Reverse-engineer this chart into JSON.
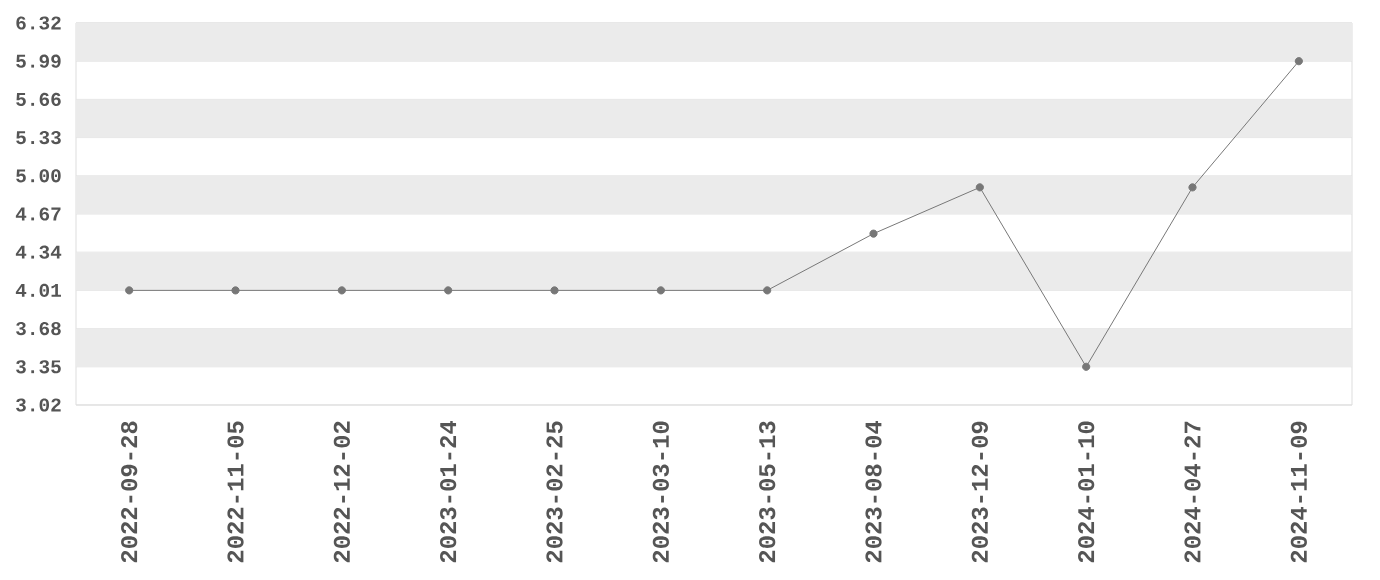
{
  "chart_data": {
    "type": "line",
    "categories": [
      "2022-09-28",
      "2022-11-05",
      "2022-12-02",
      "2023-01-24",
      "2023-02-25",
      "2023-03-10",
      "2023-05-13",
      "2023-08-04",
      "2023-12-09",
      "2024-01-10",
      "2024-04-27",
      "2024-11-09"
    ],
    "series": [
      {
        "color": "#777777",
        "values": [
          4.01,
          4.01,
          4.01,
          4.01,
          4.01,
          4.01,
          4.01,
          4.5,
          4.9,
          3.35,
          4.9,
          5.99
        ]
      }
    ],
    "ylim": [
      3.02,
      6.32
    ],
    "yticks": [
      3.02,
      3.35,
      3.68,
      4.01,
      4.34,
      4.67,
      {
        "value": 5,
        "label": "5.00"
      },
      5.33,
      5.66,
      5.99,
      6.32
    ],
    "grid": "y",
    "marker": "circle",
    "line_style": "solid"
  }
}
